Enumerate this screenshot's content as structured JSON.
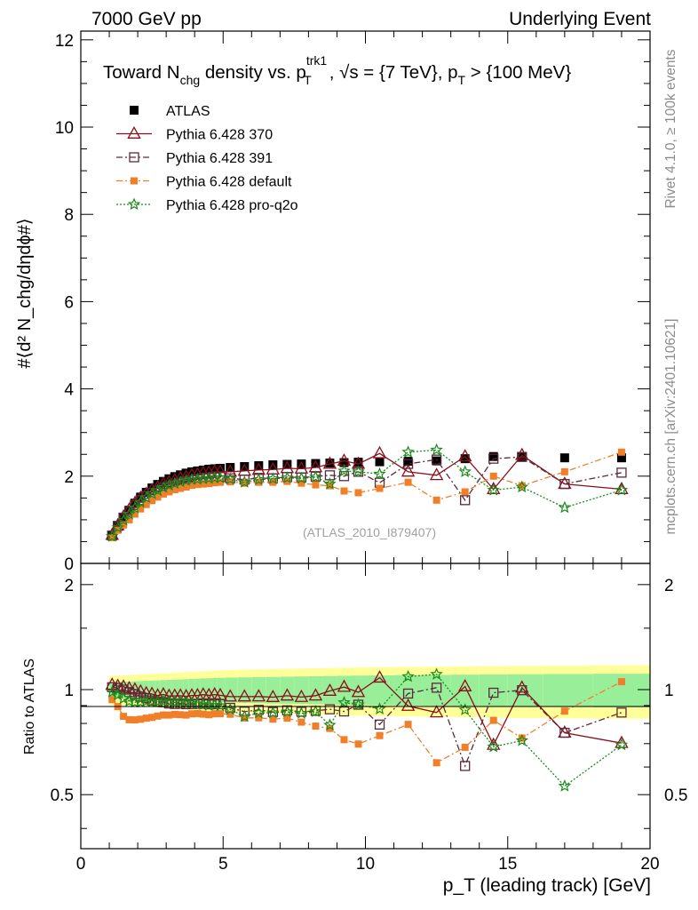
{
  "header": {
    "left": "7000 GeV pp",
    "right": "Underlying Event"
  },
  "side_labels": {
    "rivet": "Rivet 4.1.0, ≥ 100k events",
    "mcplots": "mcplots.cern.ch [arXiv:2401.10621]"
  },
  "chart_data": {
    "type": "scatter",
    "title": "Toward N_chg density vs. p_T^trk1, √s = {7 TeV}, p_T > {100 MeV}",
    "title_parts": {
      "pre": "Toward N",
      "sub1": "chg",
      "mid": " density vs. p",
      "sup2": "trk1",
      "sub2": "T",
      "post": ", √s = {7 TeV}, p",
      "sub3": "T",
      "post2": " > {100 MeV}"
    },
    "xlabel": "p_T (leading track) [GeV]",
    "ylabel": "#⟨d² N_chg/dηdϕ#⟩",
    "ratio_ylabel": "Ratio to ATLAS",
    "watermark": "(ATLAS_2010_I879407)",
    "xlim": [
      0,
      20
    ],
    "ylim": [
      0,
      12.2
    ],
    "ratio_ylim": [
      0.35,
      2.3
    ],
    "x_ticks": [
      "0",
      "5",
      "10",
      "15",
      "20"
    ],
    "y_ticks": [
      "0",
      "2",
      "4",
      "6",
      "8",
      "10",
      "12"
    ],
    "ratio_ticks": [
      "0.5",
      "1",
      "2"
    ],
    "x": [
      1.1,
      1.3,
      1.5,
      1.7,
      1.9,
      2.1,
      2.3,
      2.5,
      2.7,
      2.9,
      3.1,
      3.3,
      3.5,
      3.7,
      3.9,
      4.1,
      4.3,
      4.5,
      4.7,
      4.9,
      5.25,
      5.75,
      6.25,
      6.75,
      7.25,
      7.75,
      8.25,
      8.75,
      9.25,
      9.75,
      10.5,
      11.5,
      12.5,
      13.5,
      14.5,
      15.5,
      17.0,
      19.0
    ],
    "series": [
      {
        "name": "ATLAS",
        "color": "#000000",
        "values": [
          0.63,
          0.85,
          1.05,
          1.22,
          1.38,
          1.52,
          1.63,
          1.73,
          1.81,
          1.88,
          1.94,
          1.99,
          2.03,
          2.07,
          2.1,
          2.12,
          2.14,
          2.16,
          2.17,
          2.18,
          2.2,
          2.22,
          2.24,
          2.26,
          2.27,
          2.28,
          2.29,
          2.3,
          2.31,
          2.32,
          2.33,
          2.34,
          2.35,
          2.4,
          2.45,
          2.45,
          2.42,
          2.42
        ]
      },
      {
        "name": "Pythia 6.428 370",
        "color": "#8b0f1a",
        "values": [
          0.65,
          0.87,
          1.07,
          1.23,
          1.38,
          1.5,
          1.59,
          1.68,
          1.74,
          1.82,
          1.86,
          1.91,
          1.95,
          1.98,
          2.02,
          2.04,
          2.07,
          2.08,
          2.1,
          2.1,
          2.1,
          2.12,
          2.14,
          2.15,
          2.18,
          2.17,
          2.2,
          2.28,
          2.35,
          2.28,
          2.52,
          2.1,
          2.02,
          2.45,
          1.7,
          2.48,
          1.82,
          1.7
        ]
      },
      {
        "name": "Pythia 6.428 391",
        "color": "#5a2a3a",
        "values": [
          0.64,
          0.86,
          1.05,
          1.2,
          1.34,
          1.45,
          1.54,
          1.61,
          1.67,
          1.73,
          1.77,
          1.81,
          1.85,
          1.88,
          1.91,
          1.93,
          1.95,
          1.96,
          1.97,
          1.98,
          1.95,
          1.92,
          1.96,
          1.95,
          1.98,
          1.97,
          1.99,
          2.02,
          2.0,
          2.1,
          1.85,
          2.28,
          2.38,
          1.45,
          2.4,
          2.44,
          1.82,
          2.08
        ]
      },
      {
        "name": "Pythia 6.428 default",
        "color": "#f07f2a",
        "values": [
          0.59,
          0.76,
          0.88,
          1.0,
          1.13,
          1.25,
          1.35,
          1.44,
          1.52,
          1.59,
          1.64,
          1.69,
          1.72,
          1.75,
          1.79,
          1.81,
          1.82,
          1.83,
          1.85,
          1.86,
          1.87,
          1.84,
          1.86,
          1.86,
          1.88,
          1.84,
          1.8,
          1.78,
          1.66,
          1.62,
          1.72,
          1.86,
          1.45,
          1.64,
          2.0,
          1.78,
          2.1,
          2.55
        ]
      },
      {
        "name": "Pythia 6.428 pro-q2o",
        "color": "#1a8a1a",
        "values": [
          0.62,
          0.82,
          0.99,
          1.13,
          1.27,
          1.4,
          1.51,
          1.6,
          1.67,
          1.74,
          1.79,
          1.83,
          1.87,
          1.9,
          1.92,
          1.93,
          1.94,
          1.95,
          1.96,
          1.96,
          1.93,
          1.86,
          1.92,
          1.94,
          1.96,
          1.95,
          1.98,
          1.82,
          2.12,
          2.1,
          2.05,
          2.55,
          2.6,
          2.1,
          1.68,
          1.75,
          1.28,
          1.68
        ]
      }
    ],
    "legend": {
      "position": "top-left",
      "entries": [
        "ATLAS",
        "Pythia 6.428 370",
        "Pythia 6.428 391",
        "Pythia 6.428 default",
        "Pythia 6.428 pro-q2o"
      ]
    }
  }
}
